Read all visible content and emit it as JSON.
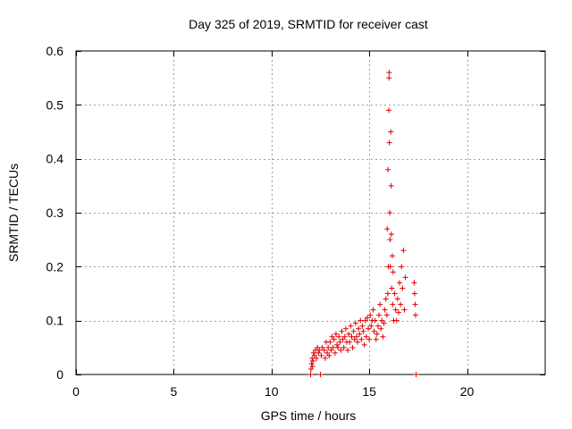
{
  "chart_data": {
    "type": "scatter",
    "title": "Day 325 of 2019, SRMTID for receiver cast",
    "xlabel": "GPS time / hours",
    "ylabel": "SRMTID / TECUs",
    "xlim": [
      0,
      24
    ],
    "ylim": [
      0,
      0.6
    ],
    "xticks": [
      0,
      5,
      10,
      15,
      20
    ],
    "yticks": [
      0,
      0.1,
      0.2,
      0.3,
      0.4,
      0.5,
      0.6
    ],
    "xtick_labels": [
      "0",
      "5",
      "10",
      "15",
      "20"
    ],
    "ytick_labels": [
      "0",
      "0.1",
      "0.2",
      "0.3",
      "0.4",
      "0.5",
      "0.6"
    ],
    "grid": true,
    "marker": "+",
    "color": "#e00000",
    "series": [
      {
        "name": "SRMTID",
        "points": [
          [
            12.0,
            0.0
          ],
          [
            12.02,
            0.01
          ],
          [
            12.05,
            0.02
          ],
          [
            12.08,
            0.03
          ],
          [
            12.1,
            0.015
          ],
          [
            12.12,
            0.025
          ],
          [
            12.15,
            0.04
          ],
          [
            12.2,
            0.035
          ],
          [
            12.25,
            0.045
          ],
          [
            12.3,
            0.03
          ],
          [
            12.35,
            0.05
          ],
          [
            12.4,
            0.04
          ],
          [
            12.45,
            0.045
          ],
          [
            12.5,
            0.0
          ],
          [
            12.55,
            0.035
          ],
          [
            12.6,
            0.05
          ],
          [
            12.7,
            0.045
          ],
          [
            12.75,
            0.03
          ],
          [
            12.8,
            0.06
          ],
          [
            12.85,
            0.04
          ],
          [
            12.9,
            0.05
          ],
          [
            12.95,
            0.035
          ],
          [
            13.0,
            0.06
          ],
          [
            13.05,
            0.045
          ],
          [
            13.1,
            0.07
          ],
          [
            13.15,
            0.05
          ],
          [
            13.2,
            0.065
          ],
          [
            13.25,
            0.04
          ],
          [
            13.3,
            0.075
          ],
          [
            13.35,
            0.055
          ],
          [
            13.4,
            0.05
          ],
          [
            13.45,
            0.07
          ],
          [
            13.5,
            0.06
          ],
          [
            13.55,
            0.045
          ],
          [
            13.6,
            0.08
          ],
          [
            13.65,
            0.065
          ],
          [
            13.7,
            0.05
          ],
          [
            13.75,
            0.07
          ],
          [
            13.8,
            0.085
          ],
          [
            13.85,
            0.06
          ],
          [
            13.9,
            0.045
          ],
          [
            13.95,
            0.075
          ],
          [
            14.0,
            0.06
          ],
          [
            14.05,
            0.09
          ],
          [
            14.1,
            0.07
          ],
          [
            14.15,
            0.05
          ],
          [
            14.2,
            0.08
          ],
          [
            14.25,
            0.065
          ],
          [
            14.3,
            0.095
          ],
          [
            14.35,
            0.07
          ],
          [
            14.4,
            0.06
          ],
          [
            14.45,
            0.085
          ],
          [
            14.5,
            0.075
          ],
          [
            14.55,
            0.1
          ],
          [
            14.6,
            0.065
          ],
          [
            14.65,
            0.09
          ],
          [
            14.7,
            0.08
          ],
          [
            14.75,
            0.055
          ],
          [
            14.8,
            0.1
          ],
          [
            14.85,
            0.07
          ],
          [
            14.9,
            0.105
          ],
          [
            14.95,
            0.085
          ],
          [
            15.0,
            0.065
          ],
          [
            15.05,
            0.11
          ],
          [
            15.1,
            0.09
          ],
          [
            15.15,
            0.1
          ],
          [
            15.2,
            0.12
          ],
          [
            15.25,
            0.08
          ],
          [
            15.3,
            0.1
          ],
          [
            15.35,
            0.065
          ],
          [
            15.4,
            0.075
          ],
          [
            15.45,
            0.09
          ],
          [
            15.5,
            0.11
          ],
          [
            15.55,
            0.13
          ],
          [
            15.6,
            0.085
          ],
          [
            15.65,
            0.1
          ],
          [
            15.7,
            0.07
          ],
          [
            15.75,
            0.095
          ],
          [
            15.8,
            0.12
          ],
          [
            15.85,
            0.14
          ],
          [
            15.9,
            0.11
          ],
          [
            15.92,
            0.27
          ],
          [
            15.95,
            0.15
          ],
          [
            15.96,
            0.38
          ],
          [
            15.98,
            0.2
          ],
          [
            16.0,
            0.49
          ],
          [
            16.01,
            0.55
          ],
          [
            16.02,
            0.56
          ],
          [
            16.03,
            0.43
          ],
          [
            16.05,
            0.3
          ],
          [
            16.06,
            0.25
          ],
          [
            16.08,
            0.2
          ],
          [
            16.1,
            0.45
          ],
          [
            16.12,
            0.35
          ],
          [
            16.13,
            0.26
          ],
          [
            16.15,
            0.16
          ],
          [
            16.18,
            0.22
          ],
          [
            16.2,
            0.13
          ],
          [
            16.22,
            0.19
          ],
          [
            16.25,
            0.1
          ],
          [
            16.3,
            0.15
          ],
          [
            16.35,
            0.12
          ],
          [
            16.4,
            0.1
          ],
          [
            16.45,
            0.14
          ],
          [
            16.5,
            0.115
          ],
          [
            16.55,
            0.17
          ],
          [
            16.6,
            0.13
          ],
          [
            16.65,
            0.2
          ],
          [
            16.7,
            0.16
          ],
          [
            16.75,
            0.23
          ],
          [
            16.8,
            0.12
          ],
          [
            16.85,
            0.18
          ],
          [
            17.3,
            0.17
          ],
          [
            17.32,
            0.15
          ],
          [
            17.35,
            0.13
          ],
          [
            17.37,
            0.11
          ],
          [
            17.4,
            0.0
          ]
        ]
      }
    ]
  }
}
